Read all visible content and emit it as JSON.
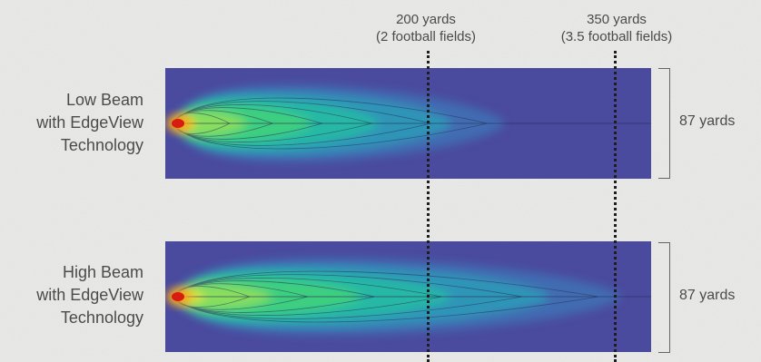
{
  "markers": [
    {
      "distance": "200 yards",
      "equivalent": "(2 football fields)"
    },
    {
      "distance": "350 yards",
      "equivalent": "(3.5 football fields)"
    }
  ],
  "beams": [
    {
      "id": "low",
      "label_lines": [
        "Low Beam",
        "with EdgeView",
        "Technology"
      ],
      "width_label": "87 yards",
      "reach_fraction": 0.68
    },
    {
      "id": "high",
      "label_lines": [
        "High Beam",
        "with EdgeView",
        "Technology"
      ],
      "width_label": "87 yards",
      "reach_fraction": 0.92
    }
  ],
  "colors": {
    "background": "#e9e9e7",
    "beam_field": "#4a4a9e",
    "marker_line": "#1e1e1e",
    "hot_spot": "#d81c10"
  }
}
